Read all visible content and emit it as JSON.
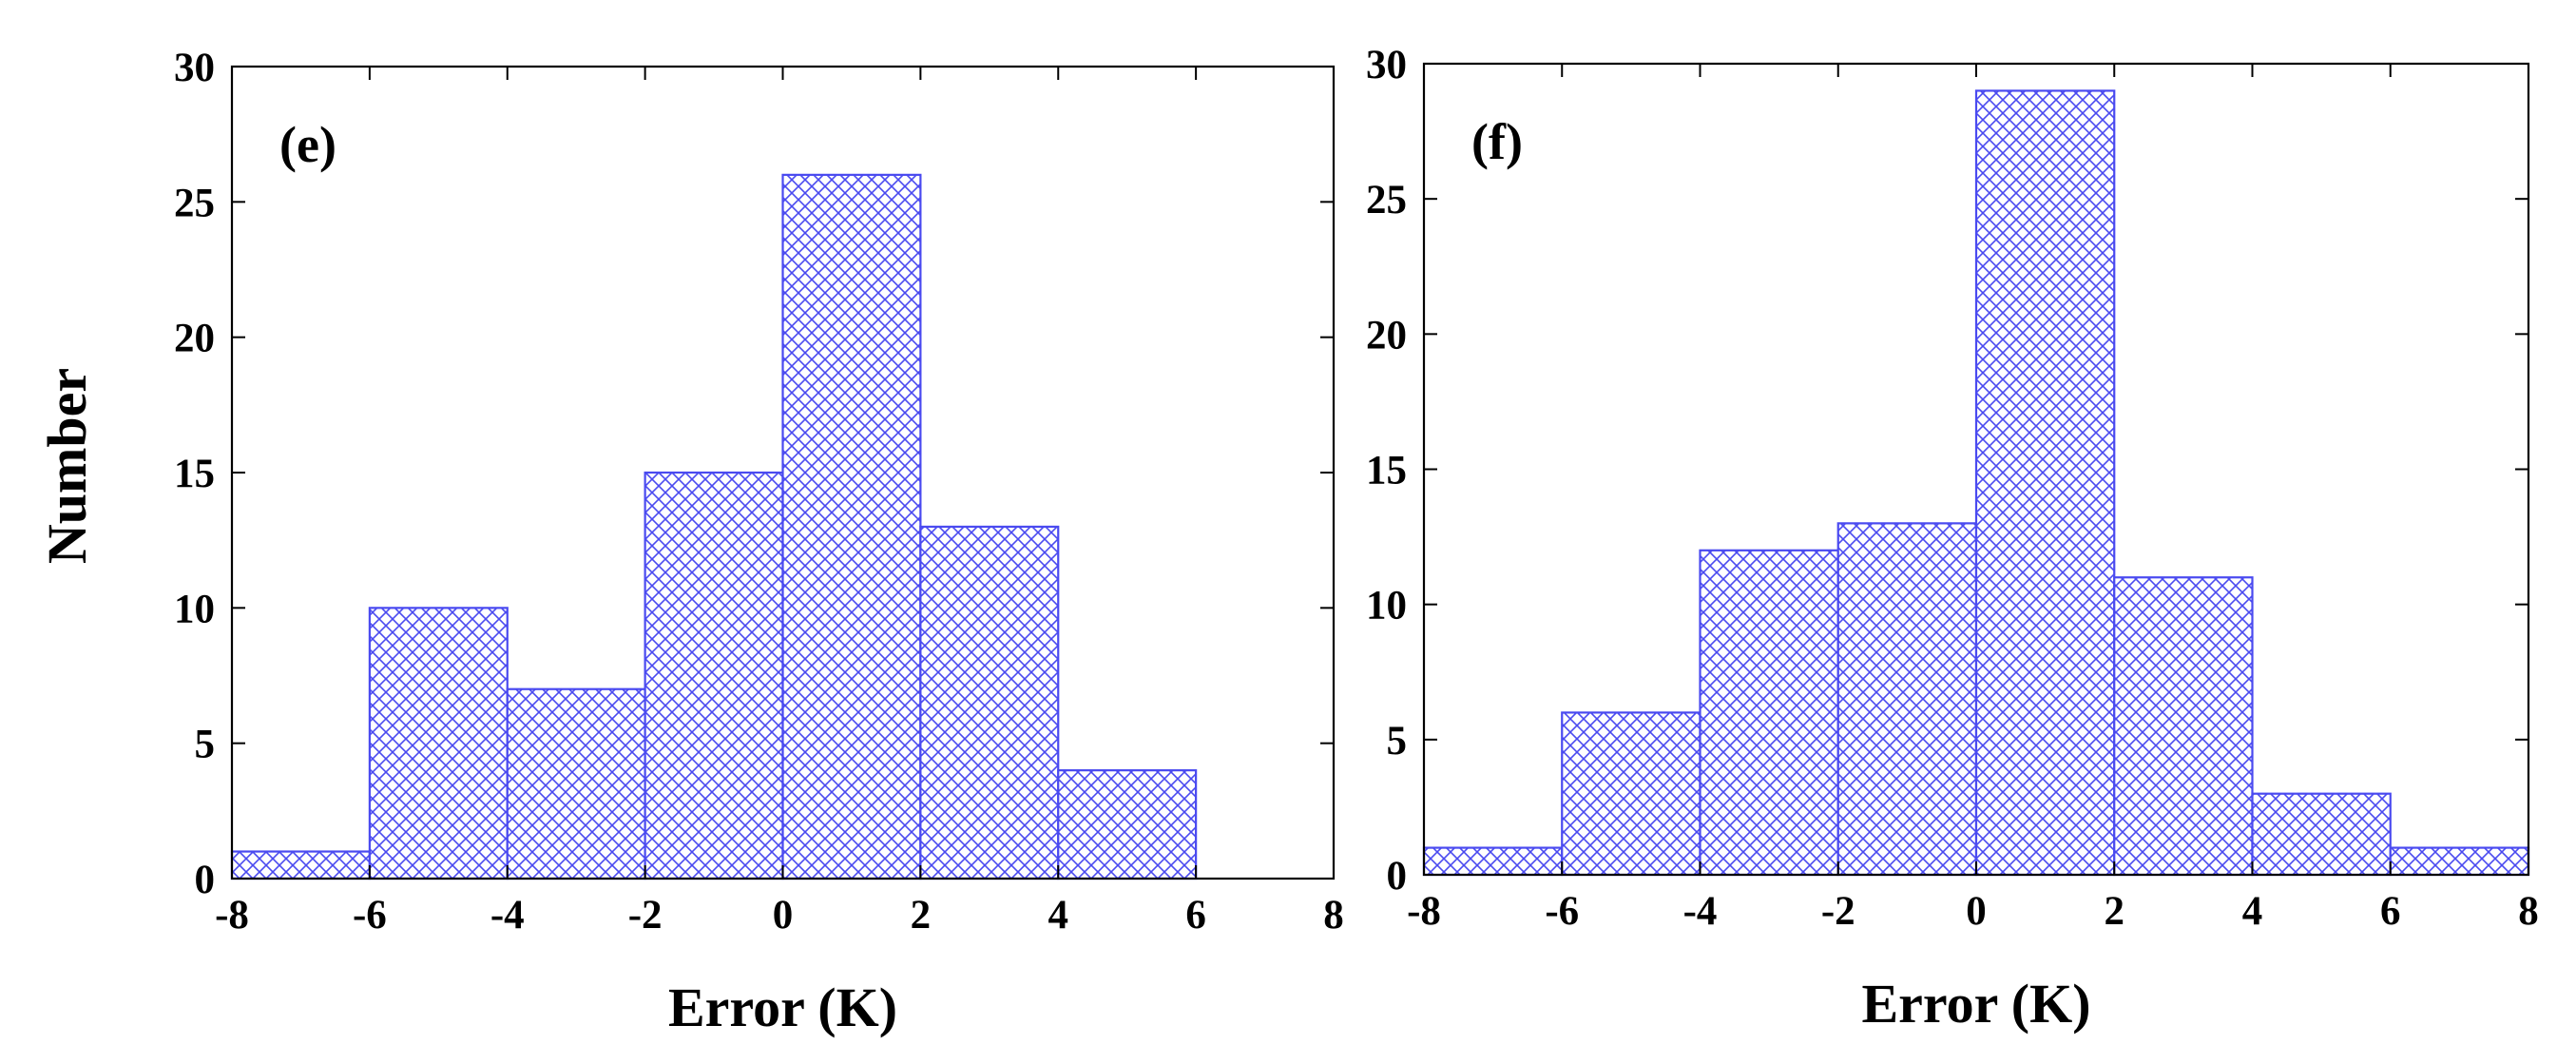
{
  "figure": {
    "shared_ylabel": "Number"
  },
  "colors": {
    "bar_stroke": "#4a4af0",
    "hatch": "#4a4af0",
    "axis": "#000000"
  },
  "chart_data": [
    {
      "type": "bar",
      "panel_label": "(e)",
      "xlabel": "Error (K)",
      "ylabel": "Number",
      "bin_edges": [
        -8,
        -6,
        -4,
        -2,
        0,
        2,
        4,
        6
      ],
      "values": [
        1,
        10,
        7,
        15,
        26,
        13,
        4
      ],
      "xlim": [
        -8,
        8
      ],
      "ylim": [
        0,
        30
      ],
      "xticks": [
        -8,
        -6,
        -4,
        -2,
        0,
        2,
        4,
        6,
        8
      ],
      "yticks": [
        0,
        5,
        10,
        15,
        20,
        25,
        30
      ],
      "grid": false,
      "fill": "cross-hatch"
    },
    {
      "type": "bar",
      "panel_label": "(f)",
      "xlabel": "Error (K)",
      "ylabel": "Number",
      "bin_edges": [
        -8,
        -6,
        -4,
        -2,
        0,
        2,
        4,
        6,
        8
      ],
      "values": [
        1,
        6,
        12,
        13,
        29,
        11,
        3,
        1
      ],
      "xlim": [
        -8,
        8
      ],
      "ylim": [
        0,
        30
      ],
      "xticks": [
        -8,
        -6,
        -4,
        -2,
        0,
        2,
        4,
        6,
        8
      ],
      "yticks": [
        0,
        5,
        10,
        15,
        20,
        25,
        30
      ],
      "grid": false,
      "fill": "cross-hatch"
    }
  ]
}
